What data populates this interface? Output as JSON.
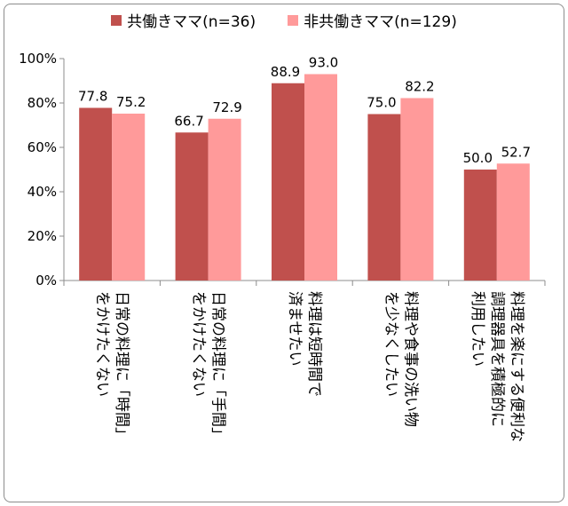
{
  "chart_data": {
    "type": "bar",
    "categories": [
      [
        "日常の料理に「時間」",
        "をかけたくない"
      ],
      [
        "日常の料理に「手間」",
        "をかけたくない"
      ],
      [
        "料理は短時間で",
        "済ませたい"
      ],
      [
        "料理や食事の洗い物",
        "を少なくしたい"
      ],
      [
        "料理を楽にする便利な",
        "調理器具を積極的に",
        "利用したい"
      ]
    ],
    "series": [
      {
        "name": "共働きママ(n=36)",
        "values": [
          77.8,
          66.7,
          88.9,
          75.0,
          50.0
        ],
        "labels": [
          "77.8",
          "66.7",
          "88.9",
          "75.0",
          "50.0"
        ],
        "color": "#c0504d"
      },
      {
        "name": "非共働きママ(n=129)",
        "values": [
          75.2,
          72.9,
          93.0,
          82.2,
          52.7
        ],
        "labels": [
          "75.2",
          "72.9",
          "93.0",
          "82.2",
          "52.7"
        ],
        "color": "#ff9a9a"
      }
    ],
    "yticks": [
      "0%",
      "20%",
      "40%",
      "60%",
      "80%",
      "100%"
    ],
    "ylim": [
      0,
      100
    ],
    "grid": false,
    "legend_position": "top"
  }
}
